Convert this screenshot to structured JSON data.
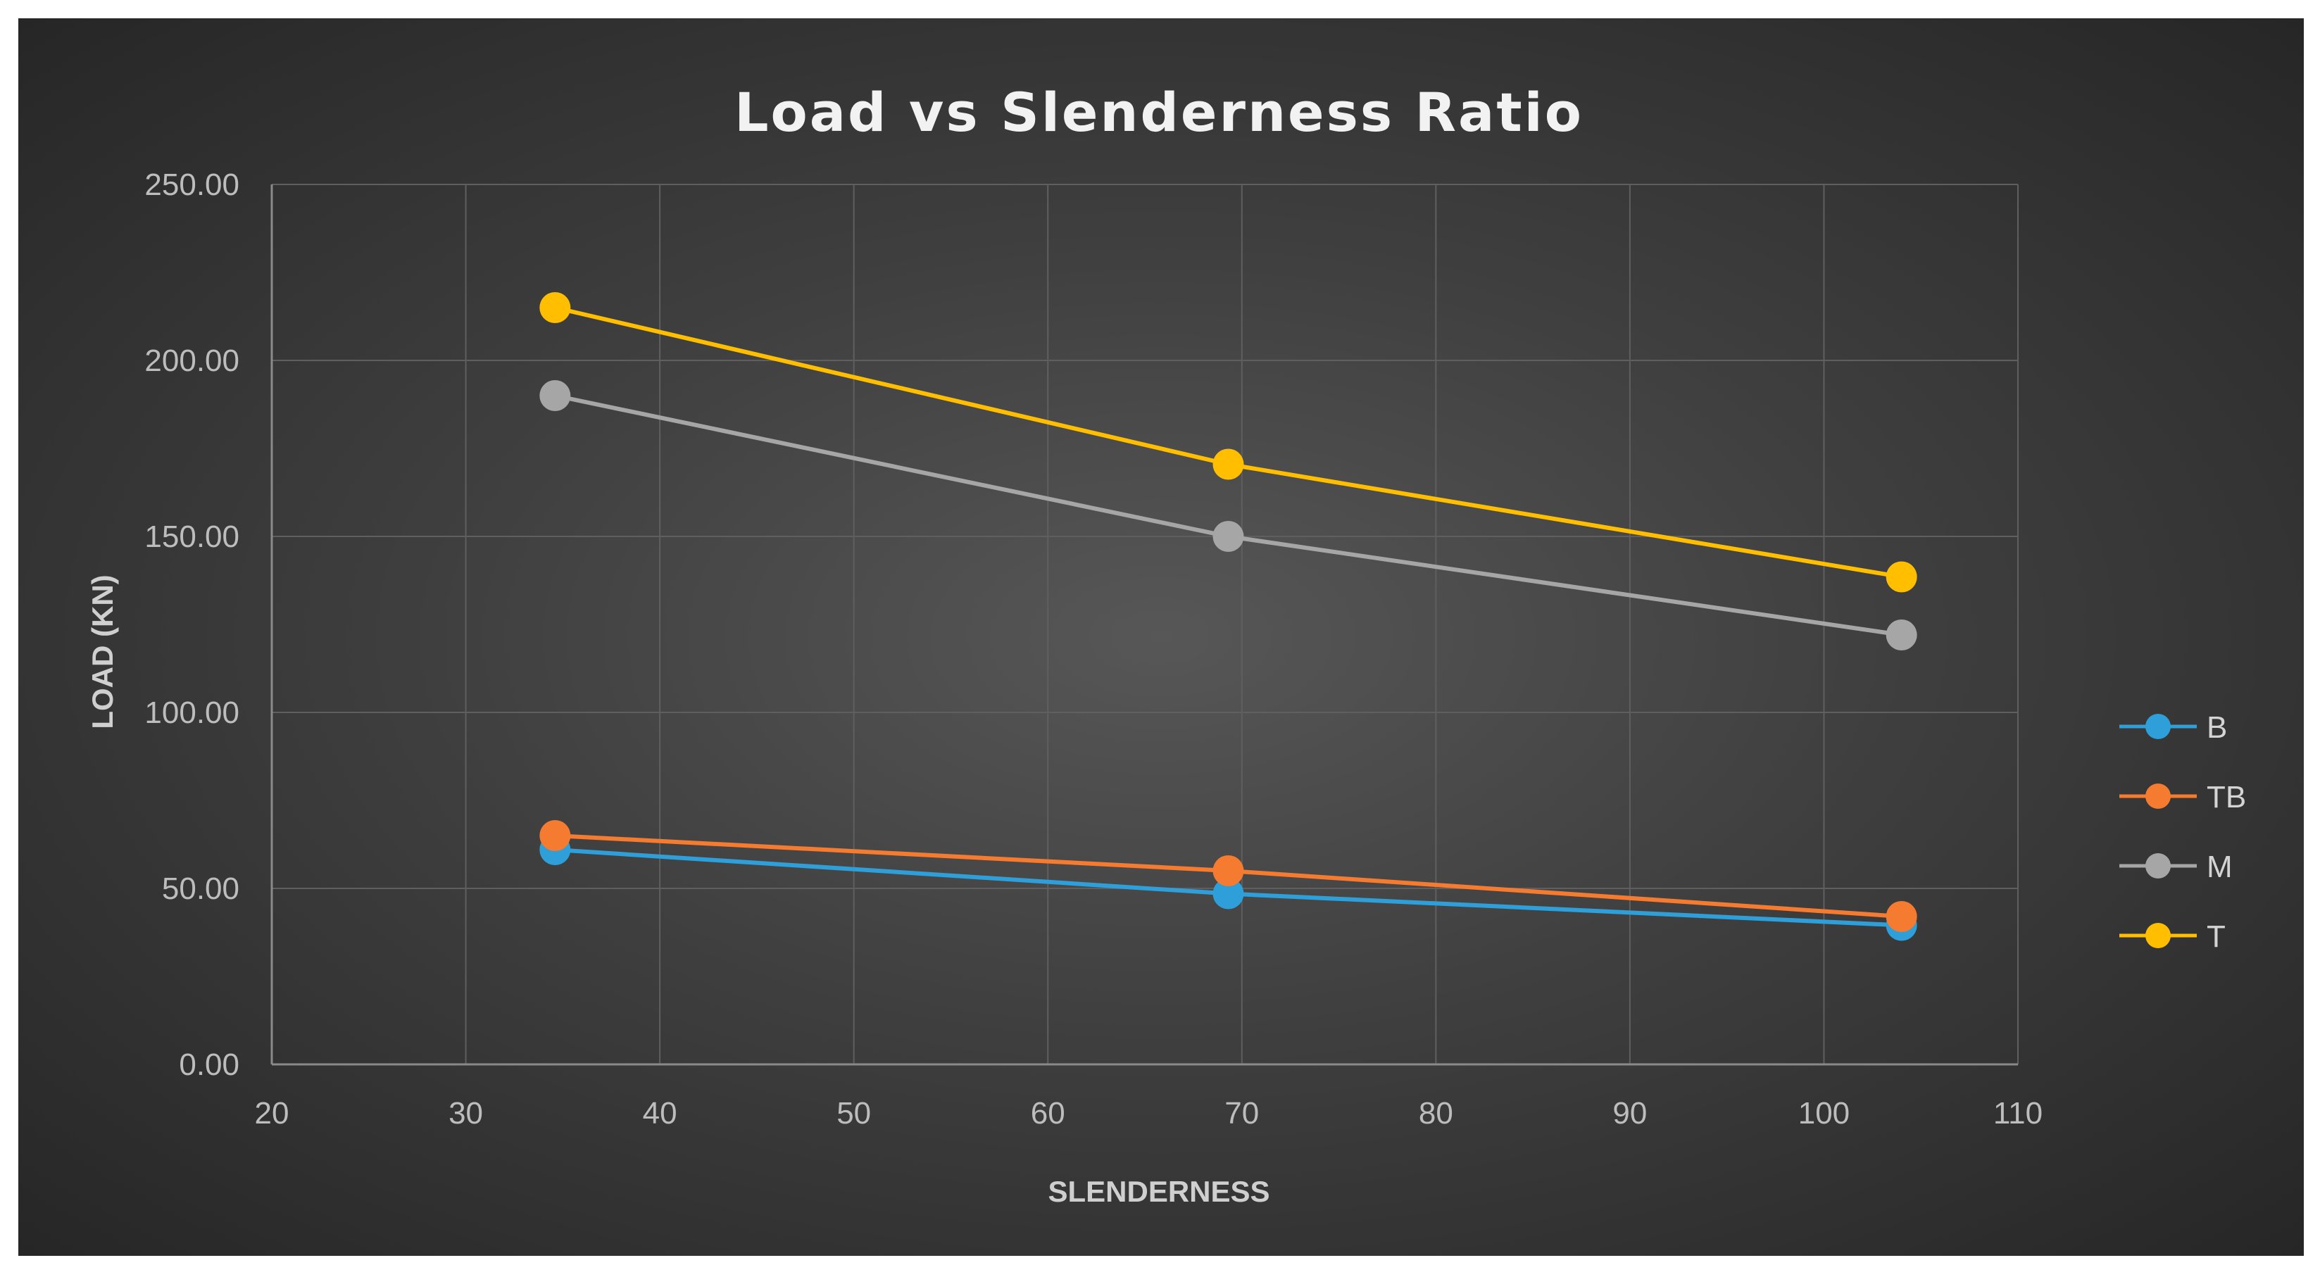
{
  "chart_data": {
    "type": "line",
    "title": "Load vs Slenderness Ratio",
    "xlabel": "SLENDERNESS",
    "ylabel": "LOAD (KN)",
    "xlim": [
      20,
      110
    ],
    "ylim": [
      0,
      250
    ],
    "xticks": [
      20,
      30,
      40,
      50,
      60,
      70,
      80,
      90,
      100,
      110
    ],
    "xtick_labels": [
      "20",
      "30",
      "40",
      "50",
      "60",
      "70",
      "80",
      "90",
      "100",
      "110"
    ],
    "yticks": [
      0,
      50,
      100,
      150,
      200,
      250
    ],
    "ytick_labels": [
      "0.00",
      "50.00",
      "100.00",
      "150.00",
      "200.00",
      "250.00"
    ],
    "grid": true,
    "legend_position": "right",
    "x": [
      34.6,
      69.3,
      104
    ],
    "series": [
      {
        "name": "B",
        "color": "#2e9fd8",
        "values": [
          61,
          48.5,
          39.5
        ]
      },
      {
        "name": "TB",
        "color": "#f47b30",
        "values": [
          65,
          55,
          42
        ]
      },
      {
        "name": "M",
        "color": "#a6a6a6",
        "values": [
          190,
          150,
          122
        ]
      },
      {
        "name": "T",
        "color": "#ffbf00",
        "values": [
          215,
          170.5,
          138.5
        ]
      }
    ]
  }
}
